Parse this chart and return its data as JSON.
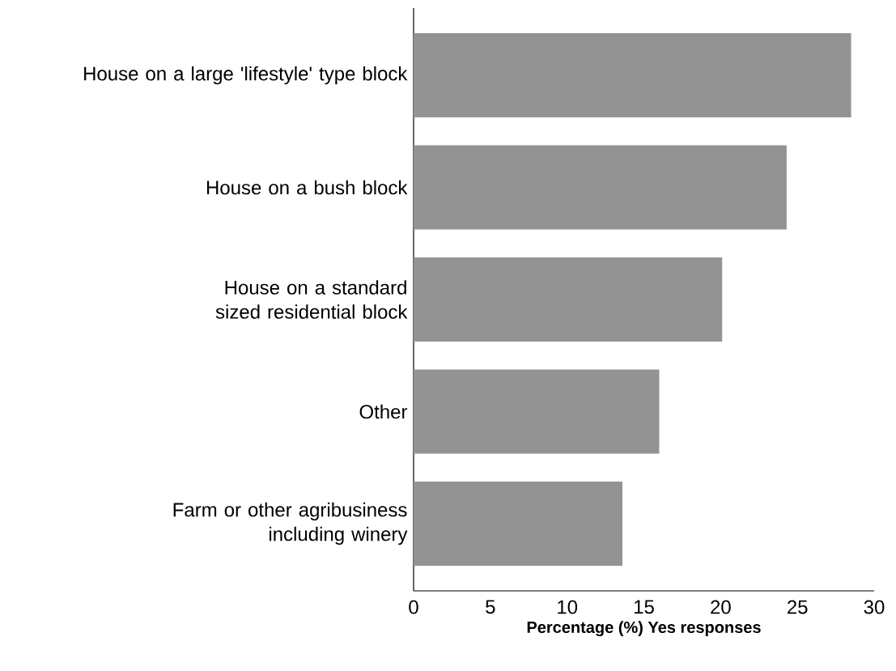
{
  "chart_data": {
    "type": "bar",
    "orientation": "horizontal",
    "categories": [
      "House on a large 'lifestyle' type block",
      "House on a bush block",
      "House on a standard sized residential block",
      "Other",
      "Farm or other agribusiness including winery"
    ],
    "values": [
      28.5,
      24.3,
      20.1,
      16.0,
      13.6
    ],
    "color": "#939393",
    "xlim": [
      0,
      30
    ],
    "xticks": [
      0,
      5,
      10,
      15,
      20,
      25,
      30
    ],
    "xlabel": "Percentage (%) Yes responses"
  }
}
